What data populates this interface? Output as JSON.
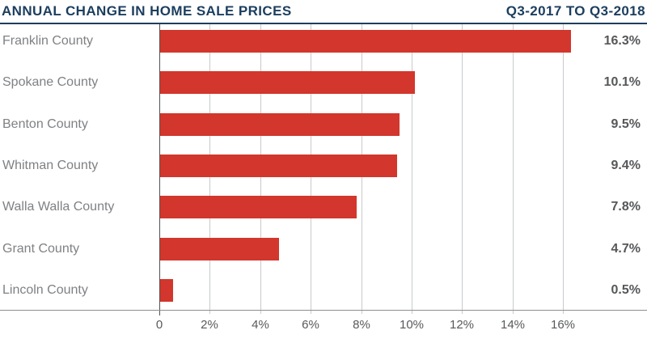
{
  "header": {
    "title": "ANNUAL CHANGE IN HOME SALE PRICES",
    "period": "Q3-2017 TO Q3-2018"
  },
  "chart_data": {
    "type": "bar",
    "orientation": "horizontal",
    "title": "ANNUAL CHANGE IN HOME SALE PRICES",
    "subtitle": "Q3-2017 TO Q3-2018",
    "categories": [
      "Franklin County",
      "Spokane County",
      "Benton County",
      "Whitman County",
      "Walla Walla County",
      "Grant County",
      "Lincoln County"
    ],
    "values": [
      16.3,
      10.1,
      9.5,
      9.4,
      7.8,
      4.7,
      0.5
    ],
    "value_labels": [
      "16.3%",
      "10.1%",
      "9.5%",
      "9.4%",
      "7.8%",
      "4.7%",
      "0.5%"
    ],
    "x_tick_labels": [
      "0",
      "2%",
      "4%",
      "6%",
      "8%",
      "10%",
      "12%",
      "14%",
      "16%"
    ],
    "x_tick_values": [
      0,
      2,
      4,
      6,
      8,
      10,
      12,
      14,
      16
    ],
    "xlim": [
      0,
      16
    ],
    "grid": true,
    "legend": "none",
    "bar_color": "#d2362c"
  },
  "colors": {
    "accent_navy": "#1c3e5f",
    "bar_red": "#d2362c",
    "category_gray": "#7f8184",
    "value_gray": "#565759",
    "tick_gray": "#58595b",
    "gridline_gray": "#c9cacc",
    "zero_axis_gray": "#4f5254",
    "baseline_gray": "#8c8e91"
  }
}
